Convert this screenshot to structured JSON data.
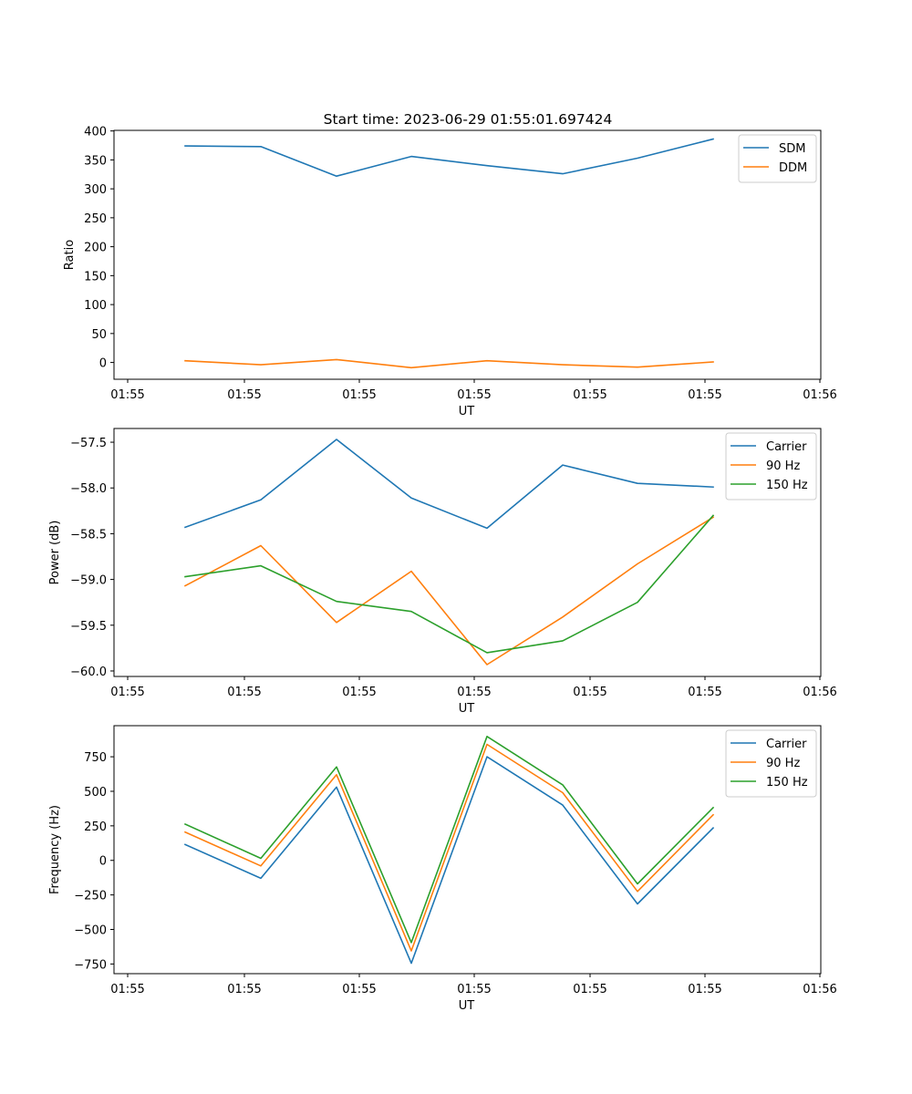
{
  "title": "Start time: 2023-06-29 01:55:01.697424",
  "chart_data": [
    {
      "type": "line",
      "title": "Start time: 2023-06-29 01:55:01.697424",
      "xlabel": "UT",
      "ylabel": "Ratio",
      "x_tick_labels": [
        "01:55",
        "01:55",
        "01:55",
        "01:55",
        "01:55",
        "01:55",
        "01:56"
      ],
      "y_ticks": [
        0,
        50,
        100,
        150,
        200,
        250,
        300,
        350,
        400
      ],
      "ylim": [
        -29,
        401
      ],
      "grid": false,
      "legend_position": "upper-right",
      "series": [
        {
          "name": "SDM",
          "color": "#1f77b4",
          "values": [
            374,
            373,
            322,
            356,
            340,
            326,
            353,
            386
          ]
        },
        {
          "name": "DDM",
          "color": "#ff7f0e",
          "values": [
            3,
            -4,
            5,
            -9,
            3,
            -4,
            -8,
            1
          ]
        }
      ]
    },
    {
      "type": "line",
      "title": "",
      "xlabel": "UT",
      "ylabel": "Power (dB)",
      "x_tick_labels": [
        "01:55",
        "01:55",
        "01:55",
        "01:55",
        "01:55",
        "01:55",
        "01:56"
      ],
      "y_ticks": [
        -57.5,
        -58.0,
        -58.5,
        -59.0,
        -59.5,
        -60.0
      ],
      "y_tick_labels": [
        "−57.5",
        "−58.0",
        "−58.5",
        "−59.0",
        "−59.5",
        "−60.0"
      ],
      "ylim": [
        -60.06,
        -57.35
      ],
      "grid": false,
      "legend_position": "upper-right",
      "series": [
        {
          "name": "Carrier",
          "color": "#1f77b4",
          "values": [
            -58.43,
            -58.13,
            -57.47,
            -58.11,
            -58.44,
            -57.75,
            -57.95,
            -57.99
          ]
        },
        {
          "name": "90 Hz",
          "color": "#ff7f0e",
          "values": [
            -59.07,
            -58.63,
            -59.47,
            -58.91,
            -59.93,
            -59.41,
            -58.83,
            -58.32
          ]
        },
        {
          "name": "150 Hz",
          "color": "#2ca02c",
          "values": [
            -58.97,
            -58.85,
            -59.24,
            -59.35,
            -59.8,
            -59.67,
            -59.25,
            -58.3
          ]
        }
      ]
    },
    {
      "type": "line",
      "title": "",
      "xlabel": "UT",
      "ylabel": "Frequency (Hz)",
      "x_tick_labels": [
        "01:55",
        "01:55",
        "01:55",
        "01:55",
        "01:55",
        "01:55",
        "01:56"
      ],
      "y_ticks": [
        750,
        500,
        250,
        0,
        -250,
        -500,
        -750
      ],
      "y_tick_labels": [
        "750",
        "500",
        "250",
        "0",
        "−250",
        "−500",
        "−750"
      ],
      "ylim": [
        -820,
        975
      ],
      "grid": false,
      "legend_position": "upper-right",
      "series": [
        {
          "name": "Carrier",
          "color": "#1f77b4",
          "values": [
            115,
            -130,
            530,
            -745,
            750,
            400,
            -315,
            235
          ]
        },
        {
          "name": "90 Hz",
          "color": "#ff7f0e",
          "values": [
            205,
            -40,
            620,
            -655,
            840,
            490,
            -225,
            330
          ]
        },
        {
          "name": "150 Hz",
          "color": "#2ca02c",
          "values": [
            262,
            15,
            677,
            -595,
            897,
            547,
            -170,
            382
          ]
        }
      ]
    }
  ]
}
